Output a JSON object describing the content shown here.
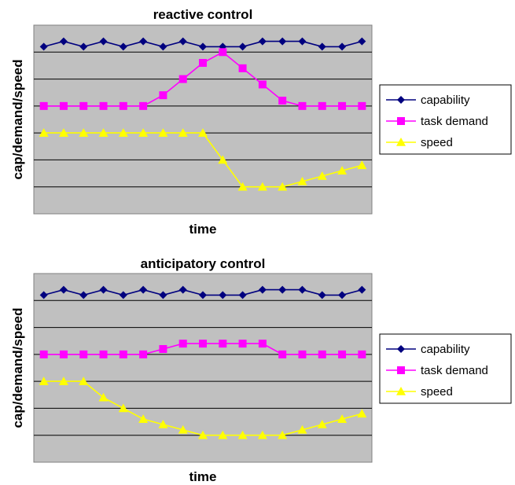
{
  "chart_data": [
    {
      "type": "line",
      "title": "reactive control",
      "xlabel": "time",
      "ylabel": "cap/demand/speed",
      "x_points": 17,
      "ylim": [
        0,
        7
      ],
      "grid": true,
      "legend_position": "right",
      "series": [
        {
          "name": "capability",
          "color": "#00007f",
          "marker": "diamond",
          "values": [
            6.2,
            6.4,
            6.2,
            6.4,
            6.2,
            6.4,
            6.2,
            6.4,
            6.2,
            6.2,
            6.2,
            6.4,
            6.4,
            6.4,
            6.2,
            6.2,
            6.4
          ]
        },
        {
          "name": "task demand",
          "color": "#ff00ff",
          "marker": "square",
          "values": [
            4.0,
            4.0,
            4.0,
            4.0,
            4.0,
            4.0,
            4.4,
            5.0,
            5.6,
            6.0,
            5.4,
            4.8,
            4.2,
            4.0,
            4.0,
            4.0,
            4.0
          ]
        },
        {
          "name": "speed",
          "color": "#ffff00",
          "marker": "triangle",
          "values": [
            3.0,
            3.0,
            3.0,
            3.0,
            3.0,
            3.0,
            3.0,
            3.0,
            3.0,
            2.0,
            1.0,
            1.0,
            1.0,
            1.2,
            1.4,
            1.6,
            1.8
          ]
        }
      ]
    },
    {
      "type": "line",
      "title": "anticipatory control",
      "xlabel": "time",
      "ylabel": "cap/demand/speed",
      "x_points": 17,
      "ylim": [
        0,
        7
      ],
      "grid": true,
      "legend_position": "right",
      "series": [
        {
          "name": "capability",
          "color": "#00007f",
          "marker": "diamond",
          "values": [
            6.2,
            6.4,
            6.2,
            6.4,
            6.2,
            6.4,
            6.2,
            6.4,
            6.2,
            6.2,
            6.2,
            6.4,
            6.4,
            6.4,
            6.2,
            6.2,
            6.4
          ]
        },
        {
          "name": "task demand",
          "color": "#ff00ff",
          "marker": "square",
          "values": [
            4.0,
            4.0,
            4.0,
            4.0,
            4.0,
            4.0,
            4.2,
            4.4,
            4.4,
            4.4,
            4.4,
            4.4,
            4.0,
            4.0,
            4.0,
            4.0,
            4.0
          ]
        },
        {
          "name": "speed",
          "color": "#ffff00",
          "marker": "triangle",
          "values": [
            3.0,
            3.0,
            3.0,
            2.4,
            2.0,
            1.6,
            1.4,
            1.2,
            1.0,
            1.0,
            1.0,
            1.0,
            1.0,
            1.2,
            1.4,
            1.6,
            1.8
          ]
        }
      ]
    }
  ]
}
